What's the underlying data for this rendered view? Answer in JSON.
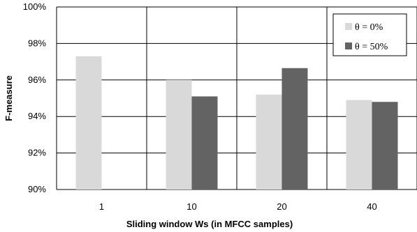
{
  "chart_data": {
    "type": "bar",
    "categories": [
      "1",
      "10",
      "20",
      "40"
    ],
    "series": [
      {
        "name": "θ = 0%",
        "color": "#d9d9d9",
        "values": [
          97.3,
          96.0,
          95.2,
          94.9
        ]
      },
      {
        "name": "θ = 50%",
        "color": "#636363",
        "values": [
          null,
          95.1,
          96.65,
          94.8
        ]
      }
    ],
    "xlabel": "Sliding window  Ws (in MFCC samples)",
    "ylabel": "F-measure",
    "ylim": [
      90,
      100
    ],
    "yticks": [
      90,
      92,
      94,
      96,
      98,
      100
    ],
    "ytick_labels": [
      "90%",
      "92%",
      "94%",
      "96%",
      "98%",
      "100%"
    ],
    "grid": true,
    "legend_position": "top-right"
  }
}
